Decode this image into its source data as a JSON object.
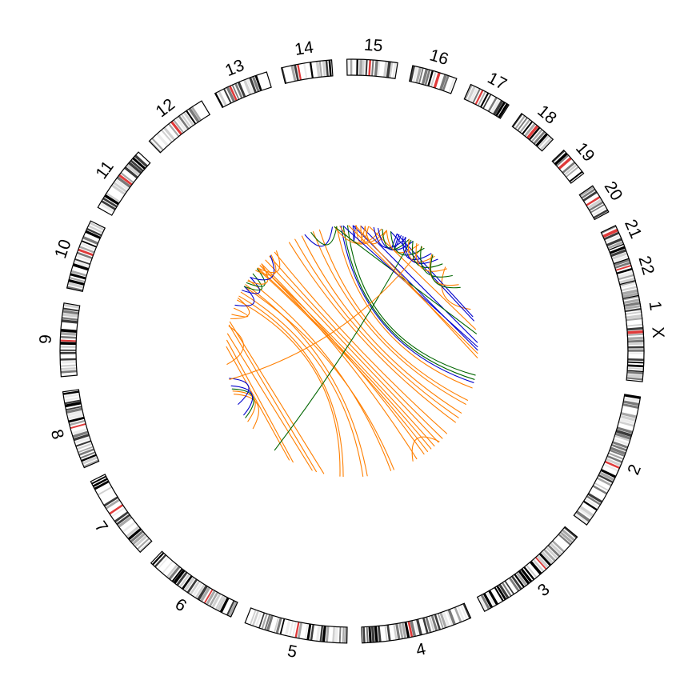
{
  "chart_data": {
    "type": "circos",
    "colors": {
      "orange": "#ff7f00",
      "blue": "#0000cc",
      "green": "#006600",
      "red_band": "#e03a3a",
      "outline": "#000000",
      "background": "#ffffff"
    },
    "chromosomes": [
      {
        "name": "1",
        "start_deg": 67.0,
        "end_deg": 96.0
      },
      {
        "name": "2",
        "start_deg": 99.0,
        "end_deg": 126.5
      },
      {
        "name": "3",
        "start_deg": 129.5,
        "end_deg": 153.0
      },
      {
        "name": "4",
        "start_deg": 156.0,
        "end_deg": 178.0
      },
      {
        "name": "5",
        "start_deg": 181.0,
        "end_deg": 201.5
      },
      {
        "name": "6",
        "start_deg": 204.5,
        "end_deg": 223.5
      },
      {
        "name": "7",
        "start_deg": 226.5,
        "end_deg": 243.5
      },
      {
        "name": "8",
        "start_deg": 246.5,
        "end_deg": 262.0
      },
      {
        "name": "9",
        "start_deg": 265.0,
        "end_deg": 279.5
      },
      {
        "name": "10",
        "start_deg": 282.5,
        "end_deg": 296.5
      },
      {
        "name": "11",
        "start_deg": 299.5,
        "end_deg": 313.0
      },
      {
        "name": "12",
        "start_deg": 316.0,
        "end_deg": 329.0
      },
      {
        "name": "13",
        "start_deg": 332.0,
        "end_deg": 343.0
      },
      {
        "name": "14",
        "start_deg": 346.0,
        "end_deg": 356.0
      },
      {
        "name": "15",
        "start_deg": 359.0,
        "end_deg": 369.0
      },
      {
        "name": "16",
        "start_deg": 372.0,
        "end_deg": 381.0
      },
      {
        "name": "17",
        "start_deg": 384.0,
        "end_deg": 392.5
      },
      {
        "name": "18",
        "start_deg": 395.5,
        "end_deg": 403.5
      },
      {
        "name": "19",
        "start_deg": 406.5,
        "end_deg": 412.5
      },
      {
        "name": "20",
        "start_deg": 415.5,
        "end_deg": 421.5
      },
      {
        "name": "21",
        "start_deg": 424.5,
        "end_deg": 428.5
      },
      {
        "name": "22",
        "start_deg": 431.5,
        "end_deg": 436.0
      },
      {
        "name": "X",
        "start_deg": 439.0,
        "end_deg": 454.0
      }
    ],
    "links": [
      {
        "a": 70.5,
        "b": 48.0,
        "color": "orange"
      },
      {
        "a": 74.0,
        "b": 21.0,
        "color": "blue"
      },
      {
        "a": 76.0,
        "b": 18.0,
        "color": "blue"
      },
      {
        "a": 80.0,
        "b": 8.0,
        "color": "orange"
      },
      {
        "a": 86.0,
        "b": 4.0,
        "color": "blue"
      },
      {
        "a": 89.5,
        "b": 0.5,
        "color": "blue"
      },
      {
        "a": 101.0,
        "b": 358.0,
        "color": "green"
      },
      {
        "a": 103.0,
        "b": 356.0,
        "color": "green"
      },
      {
        "a": 104.5,
        "b": 355.0,
        "color": "blue"
      },
      {
        "a": 107.0,
        "b": 353.0,
        "color": "orange"
      },
      {
        "a": 113.0,
        "b": 345.0,
        "color": "orange"
      },
      {
        "a": 115.0,
        "b": 342.0,
        "color": "orange"
      },
      {
        "a": 119.5,
        "b": 336.5,
        "color": "orange"
      },
      {
        "a": 122.0,
        "b": 333.0,
        "color": "orange"
      },
      {
        "a": 124.5,
        "b": 330.0,
        "color": "orange"
      },
      {
        "a": 131.0,
        "b": 322.0,
        "color": "orange"
      },
      {
        "a": 134.0,
        "b": 319.0,
        "color": "orange"
      },
      {
        "a": 136.5,
        "b": 316.5,
        "color": "orange"
      },
      {
        "a": 139.0,
        "b": 313.0,
        "color": "orange"
      },
      {
        "a": 141.0,
        "b": 311.5,
        "color": "orange"
      },
      {
        "a": 143.0,
        "b": 311.0,
        "color": "orange"
      },
      {
        "a": 145.0,
        "b": 314.0,
        "color": "orange"
      },
      {
        "a": 149.0,
        "b": 313.0,
        "color": "orange"
      },
      {
        "a": 151.0,
        "b": 136.0,
        "color": "orange"
      },
      {
        "a": 160.5,
        "b": 301.0,
        "color": "orange"
      },
      {
        "a": 162.0,
        "b": 304.5,
        "color": "orange"
      },
      {
        "a": 173.0,
        "b": 302.0,
        "color": "orange"
      },
      {
        "a": 175.0,
        "b": 298.0,
        "color": "orange"
      },
      {
        "a": 184.0,
        "b": 296.0,
        "color": "orange"
      },
      {
        "a": 185.5,
        "b": 294.0,
        "color": "orange"
      },
      {
        "a": 193.0,
        "b": 283.5,
        "color": "orange"
      },
      {
        "a": 196.5,
        "b": 282.0,
        "color": "orange"
      },
      {
        "a": 198.5,
        "b": 278.0,
        "color": "orange"
      },
      {
        "a": 208.0,
        "b": 275.0,
        "color": "orange"
      },
      {
        "a": 210.0,
        "b": 272.0,
        "color": "orange"
      },
      {
        "a": 218.0,
        "b": 28.0,
        "color": "green"
      },
      {
        "a": 232.0,
        "b": 250.0,
        "color": "orange"
      },
      {
        "a": 236.0,
        "b": 251.5,
        "color": "orange"
      },
      {
        "a": 238.0,
        "b": 252.5,
        "color": "green"
      },
      {
        "a": 239.5,
        "b": 254.0,
        "color": "blue"
      },
      {
        "a": 245.0,
        "b": 257.5,
        "color": "blue"
      },
      {
        "a": 257.0,
        "b": 34.0,
        "color": "orange"
      },
      {
        "a": 264.0,
        "b": 281.5,
        "color": "orange"
      },
      {
        "a": 285.0,
        "b": 295.0,
        "color": "orange"
      },
      {
        "a": 287.0,
        "b": 290.0,
        "color": "orange"
      },
      {
        "a": 301.0,
        "b": 291.5,
        "color": "blue"
      },
      {
        "a": 306.0,
        "b": 299.0,
        "color": "blue"
      },
      {
        "a": 308.0,
        "b": 301.0,
        "color": "green"
      },
      {
        "a": 311.0,
        "b": 303.0,
        "color": "green"
      },
      {
        "a": 314.0,
        "b": 304.0,
        "color": "orange"
      },
      {
        "a": 319.5,
        "b": 306.0,
        "color": "blue"
      },
      {
        "a": 320.0,
        "b": 310.0,
        "color": "orange"
      },
      {
        "a": 323.0,
        "b": 311.5,
        "color": "orange"
      },
      {
        "a": 338.0,
        "b": 351.0,
        "color": "blue"
      },
      {
        "a": 341.0,
        "b": 353.0,
        "color": "green"
      },
      {
        "a": 352.0,
        "b": 16.0,
        "color": "orange"
      },
      {
        "a": 354.5,
        "b": 13.5,
        "color": "orange"
      },
      {
        "a": 361.5,
        "b": 0.5,
        "color": "blue"
      },
      {
        "a": 366.0,
        "b": 2.0,
        "color": "orange"
      },
      {
        "a": 367.5,
        "b": 4.0,
        "color": "orange"
      },
      {
        "a": 376.0,
        "b": 6.0,
        "color": "orange"
      },
      {
        "a": 381.0,
        "b": 21.0,
        "color": "blue"
      },
      {
        "a": 382.0,
        "b": 23.0,
        "color": "blue"
      },
      {
        "a": 385.5,
        "b": 10.0,
        "color": "blue"
      },
      {
        "a": 387.0,
        "b": 14.0,
        "color": "green"
      },
      {
        "a": 389.0,
        "b": 12.0,
        "color": "blue"
      },
      {
        "a": 392.0,
        "b": 16.0,
        "color": "orange"
      },
      {
        "a": 395.0,
        "b": 18.0,
        "color": "green"
      },
      {
        "a": 399.0,
        "b": 24.0,
        "color": "blue"
      },
      {
        "a": 401.0,
        "b": 27.0,
        "color": "orange"
      },
      {
        "a": 403.0,
        "b": 25.0,
        "color": "blue"
      },
      {
        "a": 406.0,
        "b": 29.0,
        "color": "green"
      },
      {
        "a": 409.0,
        "b": 31.0,
        "color": "orange"
      },
      {
        "a": 413.0,
        "b": 33.5,
        "color": "green"
      },
      {
        "a": 418.0,
        "b": 39.5,
        "color": "orange"
      },
      {
        "a": 419.5,
        "b": 40.0,
        "color": "green"
      },
      {
        "a": 442.0,
        "b": 352.0,
        "color": "green"
      },
      {
        "a": 448.0,
        "b": 356.0,
        "color": "blue"
      },
      {
        "a": 451.0,
        "b": 358.5,
        "color": "orange"
      },
      {
        "a": 453.0,
        "b": 1.5,
        "color": "orange"
      }
    ]
  }
}
